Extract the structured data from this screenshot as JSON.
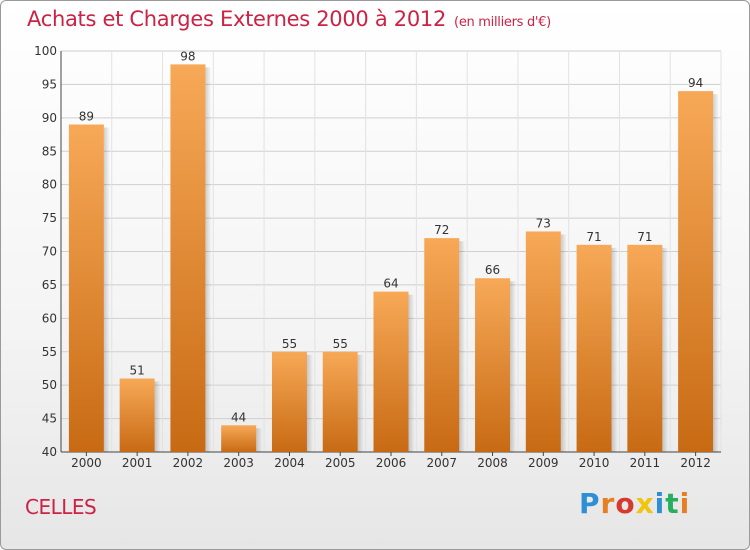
{
  "header": {
    "title": "Achats et Charges Externes 2000 à 2012",
    "unit": "(en milliers d'€)"
  },
  "footer": {
    "commune": "CELLES",
    "brand": "Proxiti",
    "brand_colors": [
      "#2e8fd4",
      "#e67e22",
      "#d63a2f",
      "#f1c40f",
      "#2e8fd4",
      "#27ae60",
      "#e67e22"
    ]
  },
  "chart_data": {
    "type": "bar",
    "title": "Achats et Charges Externes 2000 à 2012",
    "subtitle": "(en milliers d'€)",
    "categories": [
      "2000",
      "2001",
      "2002",
      "2003",
      "2004",
      "2005",
      "2006",
      "2007",
      "2008",
      "2009",
      "2010",
      "2011",
      "2012"
    ],
    "values": [
      89,
      51,
      98,
      44,
      55,
      55,
      64,
      72,
      66,
      73,
      71,
      71,
      94
    ],
    "ylim": [
      40,
      100
    ],
    "yticks": [
      40,
      45,
      50,
      55,
      60,
      65,
      70,
      75,
      80,
      85,
      90,
      95,
      100
    ],
    "grid": true,
    "bar_color_light": "#f7a957",
    "bar_color_dark": "#c86a14"
  }
}
